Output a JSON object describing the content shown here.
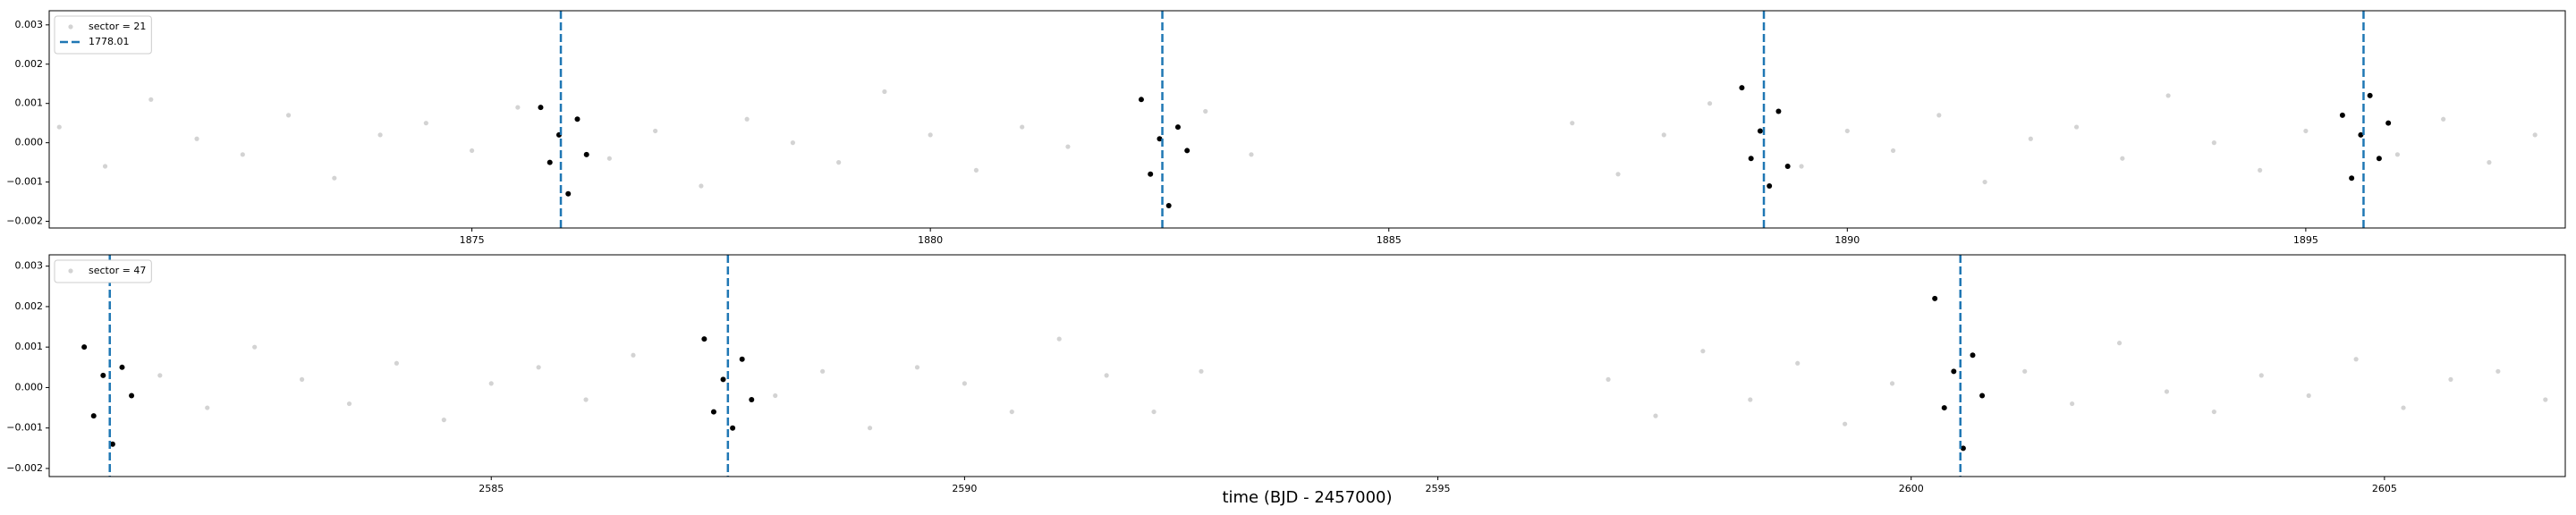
{
  "chart_data": [
    {
      "type": "scatter",
      "series": [
        {
          "name": "sector = 21",
          "color": "#d3d3d3",
          "x": [
            1870.5,
            1871.0,
            1871.5,
            1872.0,
            1872.5,
            1873.0,
            1873.5,
            1874.0,
            1874.5,
            1875.0,
            1875.5,
            1876.5,
            1877.0,
            1877.5,
            1878.0,
            1878.5,
            1879.0,
            1879.5,
            1880.0,
            1880.5,
            1881.0,
            1881.5,
            1883.0,
            1883.5,
            1887.0,
            1887.5,
            1888.0,
            1888.5,
            1889.5,
            1890.0,
            1890.5,
            1891.0,
            1891.5,
            1892.0,
            1892.5,
            1893.0,
            1893.5,
            1894.0,
            1894.5,
            1895.0,
            1896.0,
            1896.5,
            1897.0,
            1897.5
          ],
          "values": [
            0.0004,
            -0.0006,
            0.0011,
            0.0001,
            -0.0003,
            0.0007,
            -0.0009,
            0.0002,
            0.0005,
            -0.0002,
            0.0009,
            -0.0004,
            0.0003,
            -0.0011,
            0.0006,
            0.0,
            -0.0005,
            0.0013,
            0.0002,
            -0.0007,
            0.0004,
            -0.0001,
            0.0008,
            -0.0003,
            0.0005,
            -0.0008,
            0.0002,
            0.001,
            -0.0006,
            0.0003,
            -0.0002,
            0.0007,
            -0.001,
            0.0001,
            0.0004,
            -0.0004,
            0.0012,
            0.0,
            -0.0007,
            0.0003,
            -0.0003,
            0.0006,
            -0.0005,
            0.0002
          ]
        },
        {
          "color": "#000000",
          "x": [
            1875.75,
            1875.85,
            1875.95,
            1876.05,
            1876.15,
            1876.25,
            1882.3,
            1882.4,
            1882.5,
            1882.6,
            1882.7,
            1882.8,
            1888.85,
            1888.95,
            1889.05,
            1889.15,
            1889.25,
            1889.35,
            1895.4,
            1895.5,
            1895.6,
            1895.7,
            1895.8,
            1895.9
          ],
          "values": [
            0.0009,
            -0.0005,
            0.0002,
            -0.0013,
            0.0006,
            -0.0003,
            0.0011,
            -0.0008,
            0.0001,
            -0.0016,
            0.0004,
            -0.0002,
            0.0014,
            -0.0004,
            0.0003,
            -0.0011,
            0.0008,
            -0.0006,
            0.0007,
            -0.0009,
            0.0002,
            0.0012,
            -0.0004,
            0.0005
          ]
        }
      ],
      "vlines": {
        "name": "1778.01",
        "color": "#1f77b4",
        "x": [
          1875.97,
          1882.53,
          1889.09,
          1895.63
        ]
      },
      "xlim": [
        1870.39,
        1897.83
      ],
      "xticks": [
        1875,
        1880,
        1885,
        1890,
        1895
      ],
      "ylim": [
        -0.00217,
        0.00336
      ],
      "yticks": [
        0.003,
        0.002,
        0.001,
        {
          "value": 0,
          "label": "0.000"
        },
        {
          "value": -0.001,
          "label": "−0.001"
        },
        {
          "value": -0.002,
          "label": "−0.002"
        }
      ],
      "legend": "upper left"
    },
    {
      "type": "scatter",
      "series": [
        {
          "name": "sector = 47",
          "color": "#d3d3d3",
          "x": [
            2581.5,
            2582.0,
            2582.5,
            2583.0,
            2583.5,
            2584.0,
            2584.5,
            2585.0,
            2585.5,
            2586.0,
            2586.5,
            2588.0,
            2588.5,
            2589.0,
            2589.5,
            2590.0,
            2590.5,
            2591.0,
            2591.5,
            2592.0,
            2592.5,
            2596.8,
            2597.3,
            2597.8,
            2598.3,
            2598.8,
            2599.3,
            2599.8,
            2601.2,
            2601.7,
            2602.2,
            2602.7,
            2603.2,
            2603.7,
            2604.2,
            2604.7,
            2605.2,
            2605.7,
            2606.2,
            2606.7
          ],
          "values": [
            0.0003,
            -0.0005,
            0.001,
            0.0002,
            -0.0004,
            0.0006,
            -0.0008,
            0.0001,
            0.0005,
            -0.0003,
            0.0008,
            -0.0002,
            0.0004,
            -0.001,
            0.0005,
            0.0001,
            -0.0006,
            0.0012,
            0.0003,
            -0.0006,
            0.0004,
            0.0002,
            -0.0007,
            0.0009,
            -0.0003,
            0.0006,
            -0.0009,
            0.0001,
            0.0004,
            -0.0004,
            0.0011,
            -0.0001,
            -0.0006,
            0.0003,
            -0.0002,
            0.0007,
            -0.0005,
            0.0002,
            0.0004,
            -0.0003
          ]
        },
        {
          "color": "#000000",
          "x": [
            2580.7,
            2580.8,
            2580.9,
            2581.0,
            2581.1,
            2581.2,
            2587.25,
            2587.35,
            2587.45,
            2587.55,
            2587.65,
            2587.75,
            2600.25,
            2600.35,
            2600.45,
            2600.55,
            2600.65,
            2600.75
          ],
          "values": [
            0.001,
            -0.0007,
            0.0003,
            -0.0014,
            0.0005,
            -0.0002,
            0.0012,
            -0.0006,
            0.0002,
            -0.001,
            0.0007,
            -0.0003,
            0.0022,
            -0.0005,
            0.0004,
            -0.0015,
            0.0008,
            -0.0002
          ]
        }
      ],
      "vlines": {
        "color": "#1f77b4",
        "x": [
          2580.97,
          2587.5,
          2600.52
        ]
      },
      "xlim": [
        2580.33,
        2606.91
      ],
      "xticks": [
        2585,
        2590,
        2595,
        2600,
        2605
      ],
      "ylim": [
        -0.0022,
        0.00328
      ],
      "yticks": [
        0.003,
        0.002,
        0.001,
        {
          "value": 0,
          "label": "0.000"
        },
        {
          "value": -0.001,
          "label": "−0.001"
        },
        {
          "value": -0.002,
          "label": "−0.002"
        }
      ],
      "legend": "upper left",
      "xlabel": "time (BJD - 2457000)"
    }
  ]
}
